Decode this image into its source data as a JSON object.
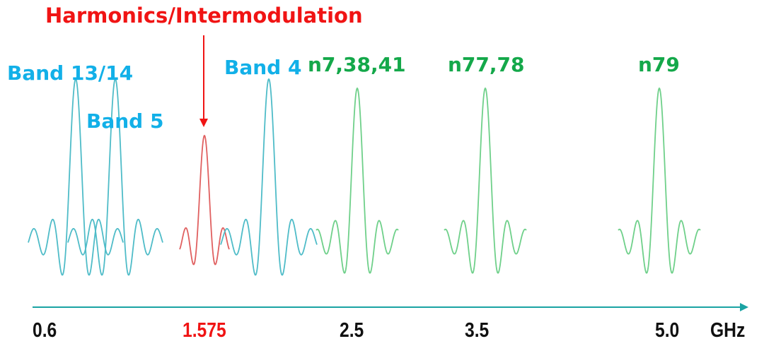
{
  "annotation": {
    "text": "Harmonics/Intermodulation",
    "color": "#f01414"
  },
  "bands": [
    {
      "label": "Band 13/14",
      "color": "#12b0e8"
    },
    {
      "label": "Band 5",
      "color": "#12b0e8"
    },
    {
      "label": "Band 4",
      "color": "#12b0e8"
    },
    {
      "label": "n7,38,41",
      "color": "#14a84a"
    },
    {
      "label": "n77,78",
      "color": "#14a84a"
    },
    {
      "label": "n79",
      "color": "#14a84a"
    }
  ],
  "axis": {
    "ticks": [
      "0.6",
      "1.575",
      "2.5",
      "3.5",
      "5.0"
    ],
    "unit": "GHz",
    "highlight_tick": "1.575",
    "color": "#1aa3a3"
  },
  "colors": {
    "lte_wave": "#4fbcc8",
    "nr_wave": "#6fd08a",
    "harmonic_wave": "#e06060"
  }
}
